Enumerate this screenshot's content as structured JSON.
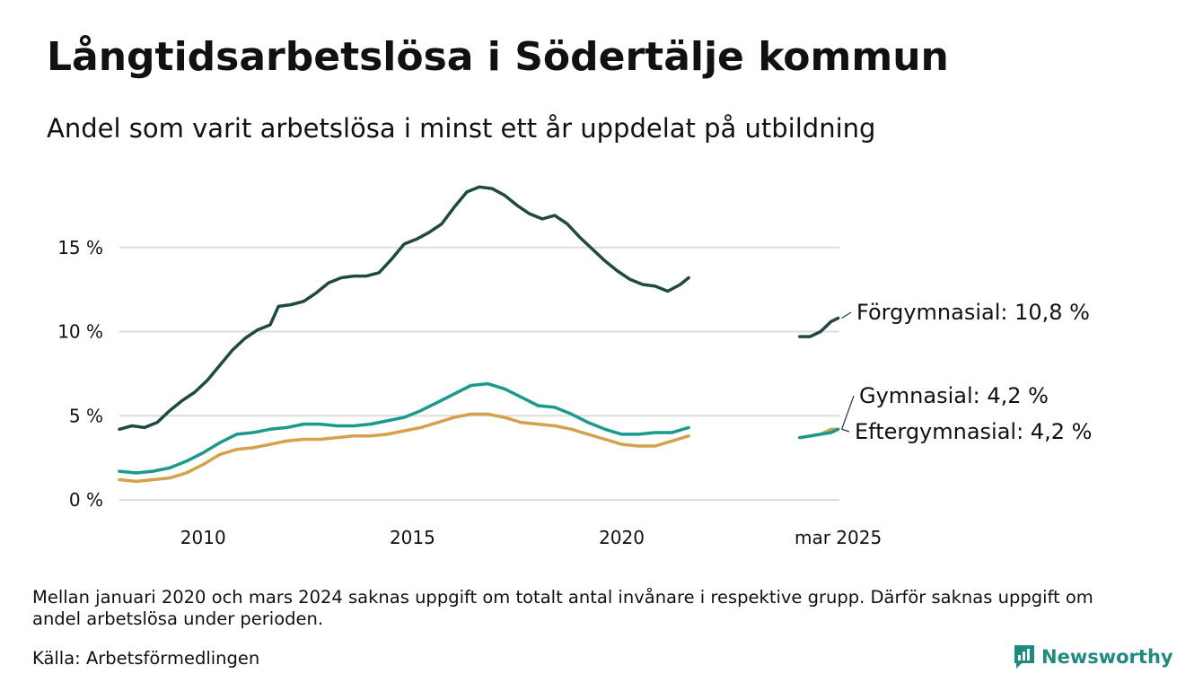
{
  "title": "Långtidsarbetslösa i Södertälje kommun",
  "subtitle": "Andel som varit arbetslösa i minst ett år uppdelat på utbildning",
  "footnote": "Mellan januari 2020 och mars 2024 saknas uppgift om totalt antal invånare i respektive grupp. Därför saknas uppgift om andel arbetslösa under perioden.",
  "source": "Källa: Arbetsförmedlingen",
  "brand": "Newsworthy",
  "colors": {
    "forgymnasial": "#1f4a44",
    "gymnasial": "#1a9a8c",
    "eftergymnasial": "#d4a24c",
    "grid": "#dddddd"
  },
  "chart_data": {
    "type": "line",
    "title": "Långtidsarbetslösa i Södertälje kommun",
    "subtitle": "Andel som varit arbetslösa i minst ett år uppdelat på utbildning",
    "xlabel": "",
    "ylabel": "",
    "x_tick_labels": [
      "2010",
      "2015",
      "2020",
      "mar 2025"
    ],
    "x_ticks": [
      2010.0,
      2015.0,
      2020.0,
      2025.17
    ],
    "y_ticks": [
      0,
      5,
      10,
      15
    ],
    "y_tick_labels": [
      "0 %",
      "5 %",
      "10 %",
      "15 %"
    ],
    "ylim": [
      0,
      19
    ],
    "xlim": [
      2008.0,
      2025.2
    ],
    "grid": "horizontal",
    "legend": "direct labels at line ends",
    "series": [
      {
        "name": "Förgymnasial",
        "end_label": "Förgymnasial: 10,8 %",
        "segments": [
          [
            [
              2008.0,
              4.2
            ],
            [
              2008.3,
              4.4
            ],
            [
              2008.6,
              4.3
            ],
            [
              2008.9,
              4.6
            ],
            [
              2009.2,
              5.3
            ],
            [
              2009.5,
              5.9
            ],
            [
              2009.8,
              6.4
            ],
            [
              2010.1,
              7.1
            ],
            [
              2010.4,
              8.0
            ],
            [
              2010.7,
              8.9
            ],
            [
              2011.0,
              9.6
            ],
            [
              2011.3,
              10.1
            ],
            [
              2011.6,
              10.4
            ],
            [
              2011.8,
              11.5
            ],
            [
              2012.1,
              11.6
            ],
            [
              2012.4,
              11.8
            ],
            [
              2012.7,
              12.3
            ],
            [
              2013.0,
              12.9
            ],
            [
              2013.3,
              13.2
            ],
            [
              2013.6,
              13.3
            ],
            [
              2013.9,
              13.3
            ],
            [
              2014.2,
              13.5
            ],
            [
              2014.5,
              14.3
            ],
            [
              2014.8,
              15.2
            ],
            [
              2015.1,
              15.5
            ],
            [
              2015.4,
              15.9
            ],
            [
              2015.7,
              16.4
            ],
            [
              2016.0,
              17.4
            ],
            [
              2016.3,
              18.3
            ],
            [
              2016.6,
              18.6
            ],
            [
              2016.9,
              18.5
            ],
            [
              2017.2,
              18.1
            ],
            [
              2017.5,
              17.5
            ],
            [
              2017.8,
              17.0
            ],
            [
              2018.1,
              16.7
            ],
            [
              2018.4,
              16.9
            ],
            [
              2018.7,
              16.4
            ],
            [
              2019.0,
              15.6
            ],
            [
              2019.3,
              14.9
            ],
            [
              2019.6,
              14.2
            ],
            [
              2019.9,
              13.6
            ],
            [
              2020.2,
              13.1
            ],
            [
              2020.5,
              12.8
            ],
            [
              2020.8,
              12.7
            ],
            [
              2021.1,
              12.4
            ],
            [
              2021.4,
              12.8
            ],
            [
              2021.6,
              13.2
            ]
          ],
          [
            [
              2024.25,
              9.7
            ],
            [
              2024.5,
              9.7
            ],
            [
              2024.75,
              10.0
            ],
            [
              2025.0,
              10.6
            ],
            [
              2025.17,
              10.8
            ]
          ]
        ]
      },
      {
        "name": "Gymnasial",
        "end_label": "Gymnasial:  4,2 %",
        "segments": [
          [
            [
              2008.0,
              1.7
            ],
            [
              2008.4,
              1.6
            ],
            [
              2008.8,
              1.7
            ],
            [
              2009.2,
              1.9
            ],
            [
              2009.6,
              2.3
            ],
            [
              2010.0,
              2.8
            ],
            [
              2010.4,
              3.4
            ],
            [
              2010.8,
              3.9
            ],
            [
              2011.2,
              4.0
            ],
            [
              2011.6,
              4.2
            ],
            [
              2012.0,
              4.3
            ],
            [
              2012.4,
              4.5
            ],
            [
              2012.8,
              4.5
            ],
            [
              2013.2,
              4.4
            ],
            [
              2013.6,
              4.4
            ],
            [
              2014.0,
              4.5
            ],
            [
              2014.4,
              4.7
            ],
            [
              2014.8,
              4.9
            ],
            [
              2015.2,
              5.3
            ],
            [
              2015.6,
              5.8
            ],
            [
              2016.0,
              6.3
            ],
            [
              2016.4,
              6.8
            ],
            [
              2016.8,
              6.9
            ],
            [
              2017.2,
              6.6
            ],
            [
              2017.6,
              6.1
            ],
            [
              2018.0,
              5.6
            ],
            [
              2018.4,
              5.5
            ],
            [
              2018.8,
              5.1
            ],
            [
              2019.2,
              4.6
            ],
            [
              2019.6,
              4.2
            ],
            [
              2020.0,
              3.9
            ],
            [
              2020.4,
              3.9
            ],
            [
              2020.8,
              4.0
            ],
            [
              2021.2,
              4.0
            ],
            [
              2021.6,
              4.3
            ]
          ],
          [
            [
              2024.25,
              3.7
            ],
            [
              2024.5,
              3.8
            ],
            [
              2024.75,
              3.9
            ],
            [
              2025.0,
              4.0
            ],
            [
              2025.17,
              4.2
            ]
          ]
        ]
      },
      {
        "name": "Eftergymnasial",
        "end_label": "Eftergymnasial:  4,2 %",
        "segments": [
          [
            [
              2008.0,
              1.2
            ],
            [
              2008.4,
              1.1
            ],
            [
              2008.8,
              1.2
            ],
            [
              2009.2,
              1.3
            ],
            [
              2009.6,
              1.6
            ],
            [
              2010.0,
              2.1
            ],
            [
              2010.4,
              2.7
            ],
            [
              2010.8,
              3.0
            ],
            [
              2011.2,
              3.1
            ],
            [
              2011.6,
              3.3
            ],
            [
              2012.0,
              3.5
            ],
            [
              2012.4,
              3.6
            ],
            [
              2012.8,
              3.6
            ],
            [
              2013.2,
              3.7
            ],
            [
              2013.6,
              3.8
            ],
            [
              2014.0,
              3.8
            ],
            [
              2014.4,
              3.9
            ],
            [
              2014.8,
              4.1
            ],
            [
              2015.2,
              4.3
            ],
            [
              2015.6,
              4.6
            ],
            [
              2016.0,
              4.9
            ],
            [
              2016.4,
              5.1
            ],
            [
              2016.8,
              5.1
            ],
            [
              2017.2,
              4.9
            ],
            [
              2017.6,
              4.6
            ],
            [
              2018.0,
              4.5
            ],
            [
              2018.4,
              4.4
            ],
            [
              2018.8,
              4.2
            ],
            [
              2019.2,
              3.9
            ],
            [
              2019.6,
              3.6
            ],
            [
              2020.0,
              3.3
            ],
            [
              2020.4,
              3.2
            ],
            [
              2020.8,
              3.2
            ],
            [
              2021.2,
              3.5
            ],
            [
              2021.6,
              3.8
            ]
          ],
          [
            [
              2024.25,
              3.7
            ],
            [
              2024.5,
              3.8
            ],
            [
              2024.75,
              3.9
            ],
            [
              2025.0,
              4.2
            ],
            [
              2025.17,
              4.2
            ]
          ]
        ]
      }
    ]
  }
}
